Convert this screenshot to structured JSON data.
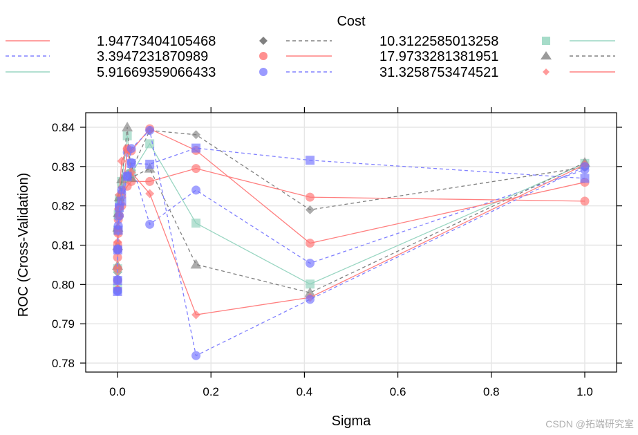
{
  "chart_data": {
    "type": "line",
    "title": "",
    "xlabel": "Sigma",
    "ylabel": "ROC (Cross-Validation)",
    "xlim": [
      -0.07,
      1.07
    ],
    "ylim": [
      0.7775,
      0.8435
    ],
    "xticks": [
      0.0,
      0.2,
      0.4,
      0.6,
      0.8,
      1.0
    ],
    "xtick_labels": [
      "0.0",
      "0.2",
      "0.4",
      "0.6",
      "0.8",
      "1.0"
    ],
    "yticks": [
      0.78,
      0.79,
      0.8,
      0.81,
      0.82,
      0.83,
      0.84
    ],
    "ytick_labels": [
      "0.78",
      "0.79",
      "0.80",
      "0.81",
      "0.82",
      "0.83",
      "0.84"
    ],
    "grid": true,
    "legend": {
      "title": "Cost",
      "placement": "top",
      "columns": 3
    },
    "x": [
      0.0001,
      0.0003,
      0.0007,
      0.0016,
      0.0038,
      0.0089,
      0.0209,
      0.0296,
      0.069,
      0.168,
      0.412,
      1.0
    ],
    "series": [
      {
        "name": "0.25",
        "legend_label": "",
        "color": "#ff8080",
        "dash": false,
        "marker": "none",
        "values": []
      },
      {
        "name": "1.94773404105468",
        "color": "#808080",
        "dash": true,
        "marker": "diamond",
        "values": [
          0.8031,
          0.8085,
          0.8142,
          0.8175,
          0.8212,
          0.8248,
          0.8282,
          0.829,
          0.8392,
          0.8381,
          0.819,
          0.8298
        ]
      },
      {
        "name": "3.3947231870989",
        "color": "#ff8080",
        "dash": false,
        "marker": "circle",
        "values": [
          0.8069,
          0.8102,
          0.8135,
          0.8165,
          0.8195,
          0.8225,
          0.825,
          0.8262,
          0.8262,
          0.8295,
          0.8222,
          0.8212
        ]
      },
      {
        "name": "5.91669359066433",
        "color": "#8080ff",
        "dash": true,
        "marker": "circle",
        "values": [
          0.7985,
          0.8088,
          0.814,
          0.8172,
          0.8202,
          0.8232,
          0.8336,
          0.831,
          0.8153,
          0.824,
          0.8054,
          0.8292
        ]
      },
      {
        "name": "10.3122585013258",
        "color": "#99d6c2",
        "dash": false,
        "marker": "square",
        "values": [
          0.799,
          0.804,
          0.8138,
          0.8178,
          0.8218,
          0.8262,
          0.8378,
          0.8282,
          0.8358,
          0.8156,
          0.8001,
          0.8308
        ]
      },
      {
        "name": "17.9733281381951",
        "color": "#808080",
        "dash": true,
        "marker": "triangle",
        "values": [
          0.8048,
          0.8098,
          0.8145,
          0.8182,
          0.8222,
          0.8268,
          0.84,
          0.8272,
          0.8295,
          0.8051,
          0.7979,
          0.831
        ]
      },
      {
        "name": "31.3258753474521",
        "color": "#ff8080",
        "dash": false,
        "marker": "diamond",
        "values": [
          0.7989,
          0.8108,
          0.8142,
          0.8192,
          0.8228,
          0.8314,
          0.8345,
          0.8285,
          0.8231,
          0.7923,
          0.7967,
          0.8305
        ]
      }
    ],
    "extra_series": [
      {
        "name": "0.25-line-a",
        "color": "#ff8080",
        "dash": false,
        "marker": "circle",
        "values": [
          0.801,
          0.804,
          0.809,
          0.813,
          0.8175,
          0.82,
          0.8345,
          0.834,
          0.8396,
          0.8341,
          0.8105,
          0.826
        ]
      },
      {
        "name": "0.25-line-b",
        "color": "#8080ff",
        "dash": true,
        "marker": "square",
        "values": [
          0.7982,
          0.801,
          0.8088,
          0.8138,
          0.8195,
          0.8212,
          0.8275,
          0.8308,
          0.8306,
          0.8347,
          0.8316,
          0.827
        ]
      },
      {
        "name": "0.25-line-c",
        "color": "#8080ff",
        "dash": true,
        "marker": "circle",
        "values": [
          0.7983,
          0.8012,
          0.809,
          0.815,
          0.8175,
          0.824,
          0.8275,
          0.8346,
          0.8392,
          0.7819,
          0.7962,
          0.83
        ]
      }
    ]
  },
  "legend_rows": [
    [
      "1.94773404105468",
      "10.3122585013258"
    ],
    [
      "3.3947231870989",
      "17.9733281381951"
    ],
    [
      "5.91669359066433",
      "31.3258753474521"
    ]
  ],
  "watermark": "CSDN @拓端研究室"
}
